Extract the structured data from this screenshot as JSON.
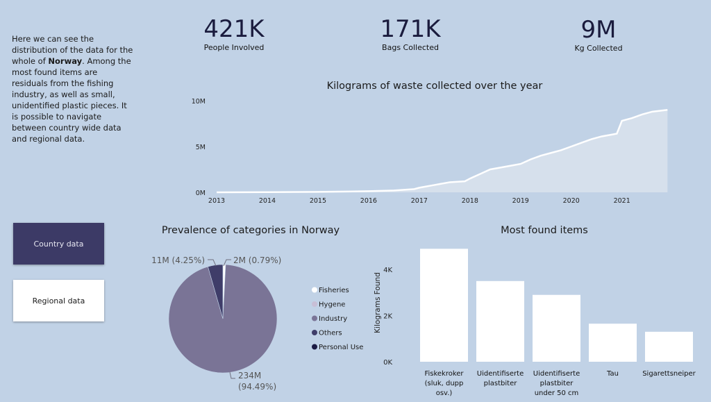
{
  "kpis": [
    {
      "value": "421K",
      "label": "People Involved"
    },
    {
      "value": "171K",
      "label": "Bags Collected"
    },
    {
      "value": "9M",
      "label": "Kg Collected"
    }
  ],
  "description": {
    "before": "Here we can see the distribution of the data for the whole of ",
    "bold": "Norway",
    "after": ".  Among the most found items are residuals from the fishing industry, as well as small, unidentified plastic pieces. It is possible to navigate between country wide data and regional data."
  },
  "buttons": {
    "country": "Country data",
    "regional": "Regional data"
  },
  "colors": {
    "background": "#c1d2e6",
    "area_fill": "#d6e0ec",
    "line": "#ffffff",
    "button_dark": "#3c3a66",
    "bar": "#ffffff"
  },
  "chart_data": [
    {
      "type": "area",
      "title": "Kilograms of waste collected over the year",
      "xlabel": "",
      "ylabel": "",
      "x_ticks": [
        "2013",
        "2014",
        "2015",
        "2016",
        "2017",
        "2018",
        "2019",
        "2020",
        "2021"
      ],
      "y_ticks": [
        "0M",
        "5M",
        "10M"
      ],
      "ylim": [
        0,
        10
      ],
      "x": [
        2013.0,
        2014.0,
        2015.0,
        2016.0,
        2016.5,
        2016.9,
        2017.0,
        2017.3,
        2017.6,
        2017.9,
        2018.0,
        2018.2,
        2018.4,
        2018.6,
        2018.8,
        2019.0,
        2019.2,
        2019.4,
        2019.6,
        2019.8,
        2020.0,
        2020.2,
        2020.4,
        2020.6,
        2020.8,
        2020.9,
        2021.0,
        2021.2,
        2021.4,
        2021.6,
        2021.9
      ],
      "values": [
        0.0,
        0.02,
        0.05,
        0.12,
        0.2,
        0.35,
        0.5,
        0.8,
        1.1,
        1.2,
        1.5,
        2.0,
        2.5,
        2.7,
        2.9,
        3.1,
        3.6,
        4.0,
        4.3,
        4.6,
        5.0,
        5.4,
        5.8,
        6.1,
        6.3,
        6.4,
        7.8,
        8.1,
        8.5,
        8.8,
        9.0
      ],
      "grid": false
    },
    {
      "type": "pie",
      "title": "Prevalence of categories in Norway",
      "legend_position": "right",
      "slices": [
        {
          "name": "Fisheries",
          "value": 2,
          "color": "#ffffff"
        },
        {
          "name": "Hygene",
          "value": 0.01,
          "color": "#c8bfd6"
        },
        {
          "name": "Industry",
          "value": 234,
          "color": "#7a7496"
        },
        {
          "name": "Others",
          "value": 11,
          "color": "#3f3d69"
        },
        {
          "name": "Personal Use",
          "value": 0.01,
          "color": "#1c1b44"
        }
      ],
      "labels": [
        "2M (0.79%)",
        "11M (4.25%)",
        "234M",
        "(94.49%)"
      ]
    },
    {
      "type": "bar",
      "title": "Most found items",
      "xlabel": "",
      "ylabel": "Kilograms Found",
      "categories": [
        [
          "Fiskekroker",
          "(sluk, dupp",
          "osv.)"
        ],
        [
          "Uidentifiserte",
          "plastbiter"
        ],
        [
          "Uidentifiserte",
          "plastbiter",
          "under 50 cm"
        ],
        [
          "Tau"
        ],
        [
          "Sigarettsneiper"
        ]
      ],
      "values": [
        4900,
        3500,
        2900,
        1650,
        1300
      ],
      "y_ticks": [
        "0K",
        "2K",
        "4K"
      ],
      "ylim": [
        0,
        5000
      ],
      "grid": false
    }
  ]
}
